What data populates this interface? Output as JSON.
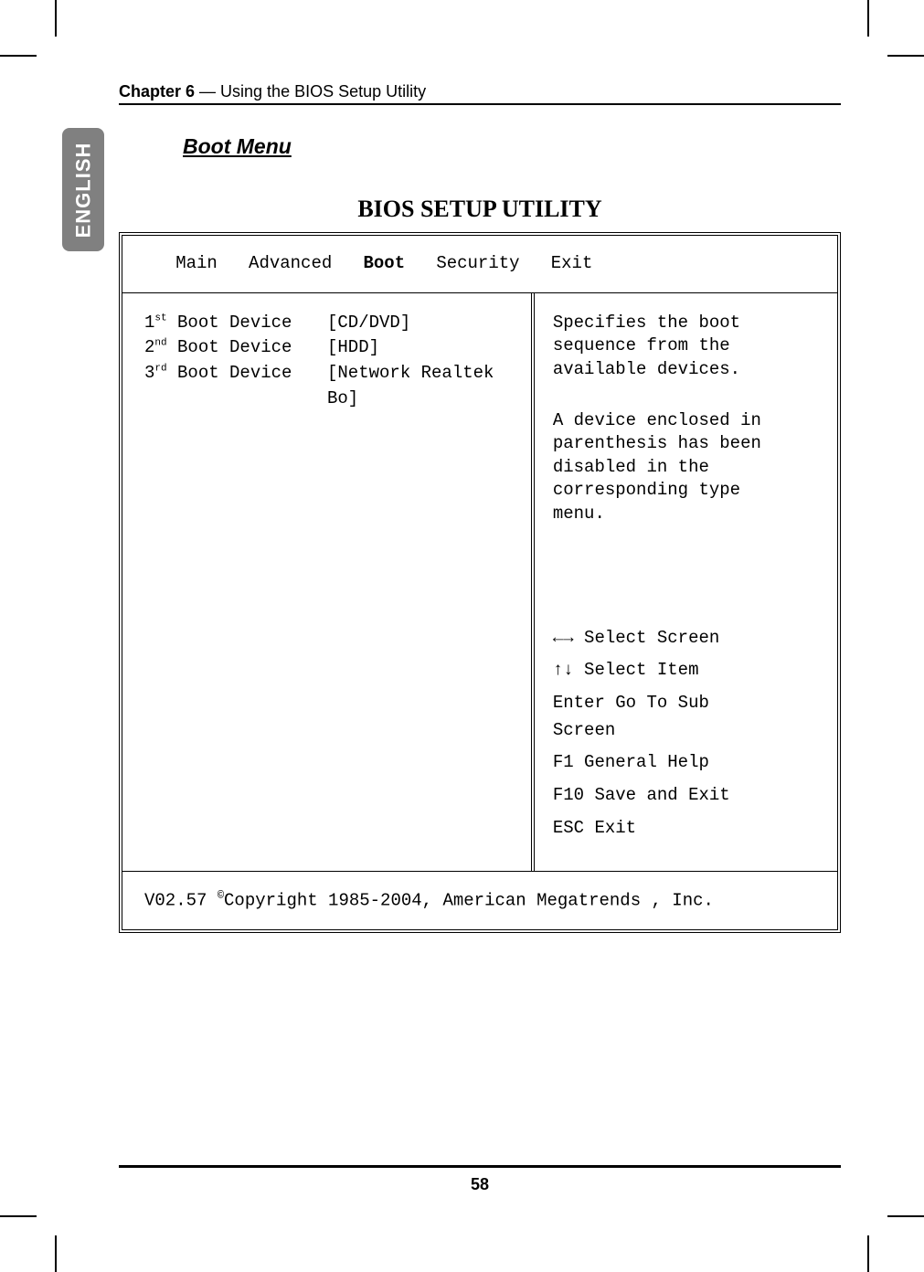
{
  "header": {
    "chapter_bold": "Chapter 6",
    "chapter_rest": " — Using the BIOS Setup Utility"
  },
  "lang_tab": "ENGLISH",
  "section_heading": "Boot Menu",
  "bios_title": "BIOS SETUP UTILITY",
  "tabs": {
    "main": "Main",
    "advanced": "Advanced",
    "boot": "Boot",
    "security": "Security",
    "exit": "Exit"
  },
  "boot": {
    "row1": {
      "num": "1",
      "ord": "st",
      "label": " Boot Device",
      "value": "[CD/DVD]"
    },
    "row2": {
      "num": "2",
      "ord": "nd",
      "label": " Boot Device",
      "value": "[HDD]"
    },
    "row3": {
      "num": "3",
      "ord": "rd",
      "label": " Boot Device",
      "value": "[Network Realtek",
      "value2": "Bo]"
    }
  },
  "help": {
    "block1_l1": "Specifies the boot",
    "block1_l2": "sequence from the",
    "block1_l3": "available devices.",
    "block2_l1": "A device enclosed in",
    "block2_l2": "parenthesis has been",
    "block2_l3": "disabled in the",
    "block2_l4": "corresponding type",
    "block2_l5": "menu.",
    "nav_select_screen": "←→ Select Screen",
    "nav_select_item": "↑↓ Select Item",
    "nav_enter_l1": "Enter Go To Sub",
    "nav_enter_l2": "Screen",
    "nav_f1": "F1  General Help",
    "nav_f10": "F10 Save and Exit",
    "nav_esc": "ESC Exit"
  },
  "footer": {
    "pre": "V02.57 ",
    "copy": "©",
    "post": "Copyright 1985-2004, American Megatrends , Inc."
  },
  "page_number": "58"
}
